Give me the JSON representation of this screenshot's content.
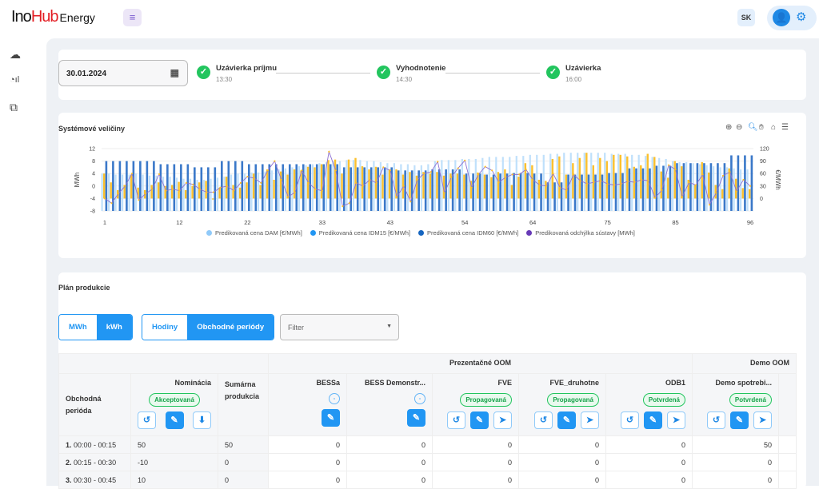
{
  "header": {
    "logo_left": "Ino",
    "logo_mid": "Hub",
    "logo_sub": "Energy",
    "user_initials": "SK"
  },
  "sidebar": {
    "items": [
      {
        "icon": "cloud-network-icon"
      },
      {
        "icon": "chart-analytics-icon"
      },
      {
        "icon": "copy-icon"
      }
    ]
  },
  "timeline": {
    "date": "30.01.2024",
    "steps": [
      {
        "label": "Uzávierka príjmu",
        "time": "13:30",
        "status": "done"
      },
      {
        "label": "Vyhodnotenie",
        "time": "14:30",
        "status": "done"
      },
      {
        "label": "Uzávierka",
        "time": "16:00",
        "status": "done"
      }
    ]
  },
  "chart_card": {
    "title": "Systémové veličiny"
  },
  "chart_data": {
    "type": "bar",
    "x_ticks": [
      "1",
      "12",
      "22",
      "33",
      "43",
      "54",
      "64",
      "75",
      "85",
      "96"
    ],
    "ylabel_left": "MWh",
    "ylabel_right": "€/MWh",
    "ylim_left": [
      -8,
      12
    ],
    "yticks_left": [
      "12",
      "8",
      "4",
      "0",
      "-4",
      "-8"
    ],
    "ylim_right": [
      0,
      120
    ],
    "yticks_right": [
      "120",
      "90",
      "60",
      "30",
      "0"
    ],
    "grid": true,
    "legend_position": "bottom",
    "colors": {
      "dam": "#bfe0fb",
      "idm15": "#fbc02d",
      "idm60": "#3a78c9",
      "deviation": "#8e6fd0"
    },
    "series": [
      {
        "name": "Predikovaná cena DAM [€/MWh]",
        "legend_color": "#90caf9",
        "axis": "right",
        "values": [
          72,
          72,
          70,
          70,
          70,
          72,
          70,
          68,
          68,
          66,
          66,
          64,
          62,
          62,
          60,
          60,
          62,
          64,
          66,
          70,
          72,
          72,
          74,
          74,
          76,
          78,
          80,
          82,
          84,
          86,
          88,
          90,
          92,
          94,
          96,
          96,
          98,
          98,
          98,
          96,
          96,
          94,
          92,
          92,
          90,
          90,
          88,
          88,
          90,
          96,
          98,
          98,
          98,
          100,
          100,
          100,
          102,
          104,
          104,
          104,
          104,
          106,
          106,
          108,
          108,
          108,
          110,
          110,
          112,
          112,
          112,
          112,
          112,
          112,
          112,
          110,
          110,
          110,
          108,
          108,
          106,
          104,
          102,
          100,
          96,
          94,
          94,
          92,
          90,
          88,
          86,
          84,
          84,
          82,
          80,
          80
        ]
      },
      {
        "name": "Predikovaná cena IDM15 [€/MWh]",
        "legend_color": "#2196f3",
        "axis": "right",
        "values": [
          72,
          55,
          40,
          50,
          70,
          45,
          40,
          50,
          55,
          48,
          50,
          56,
          40,
          48,
          55,
          58,
          22,
          45,
          66,
          50,
          45,
          55,
          72,
          50,
          80,
          60,
          76,
          70,
          80,
          78,
          85,
          84,
          90,
          98,
          99,
          72,
          99,
          102,
          86,
          80,
          85,
          70,
          80,
          80,
          70,
          75,
          68,
          75,
          72,
          75,
          68,
          72,
          72,
          70,
          58,
          74,
          70,
          65,
          75,
          80,
          50,
          66,
          92,
          88,
          60,
          58,
          100,
          105,
          70,
          92,
          102,
          112,
          88,
          102,
          96,
          108,
          108,
          105,
          85,
          88,
          110,
          104,
          76,
          64,
          96,
          86,
          60,
          50,
          94,
          74,
          50,
          42,
          82,
          62,
          44,
          42
        ]
      },
      {
        "name": "Predikovaná cena IDM60 [€/MWh]",
        "legend_color": "#1565c0",
        "axis": "right",
        "values": [
          96,
          96,
          96,
          96,
          96,
          96,
          96,
          96,
          90,
          90,
          90,
          90,
          90,
          84,
          84,
          84,
          84,
          96,
          96,
          96,
          96,
          90,
          90,
          90,
          90,
          90,
          90,
          90,
          90,
          90,
          90,
          90,
          90,
          90,
          90,
          84,
          84,
          84,
          84,
          84,
          84,
          84,
          84,
          78,
          78,
          78,
          78,
          78,
          80,
          80,
          80,
          80,
          80,
          72,
          72,
          72,
          70,
          70,
          72,
          72,
          73,
          73,
          73,
          72,
          72,
          55,
          55,
          55,
          70,
          70,
          70,
          70,
          70,
          70,
          73,
          73,
          73,
          82,
          82,
          82,
          82,
          87,
          87,
          87,
          92,
          92,
          92,
          92,
          92,
          92,
          92,
          92,
          107,
          107,
          107,
          107
        ]
      },
      {
        "name": "Predikovaná odchýlka sústavy [MWh]",
        "legend_color": "#673ab7",
        "axis": "left",
        "values": [
          -4,
          -5.5,
          -2.5,
          0,
          4,
          -4.5,
          -2.5,
          -1,
          3.8,
          -1.5,
          -1,
          -1.5,
          1,
          0.5,
          -1,
          -2,
          -2,
          -0.5,
          0,
          -1.5,
          1,
          3,
          2.5,
          1,
          5,
          8,
          2,
          -3.5,
          -2,
          5,
          1,
          -1,
          -1.5,
          11,
          5,
          -6.5,
          -5.5,
          1,
          0,
          2,
          1,
          6,
          5,
          -3.5,
          0,
          -5,
          2,
          4,
          4.5,
          7.8,
          -2.2,
          2.8,
          5.7,
          8.2,
          -0.5,
          3.7,
          6.2,
          5,
          1.2,
          2.8,
          3.7,
          3.7,
          5.3,
          2,
          0.3,
          0,
          4,
          -0.5,
          -1.3,
          3.7,
          1.7,
          0.7,
          1.2,
          1.7,
          0.7,
          0.3,
          0.7,
          1.5,
          1.2,
          2,
          1.7,
          -3.8,
          -1.3,
          6.7,
          5.3,
          -3.5,
          1.2,
          0.3,
          3.7,
          -6,
          -2.2,
          3.3,
          4.5,
          -1.7,
          2,
          0
        ]
      }
    ]
  },
  "plan": {
    "title": "Plán produkcie",
    "units": [
      "MWh",
      "kWh"
    ],
    "unit_selected": "kWh",
    "granularity": [
      "Hodiny",
      "Obchodné periódy"
    ],
    "granularity_selected": "Obchodné periódy",
    "filter_placeholder": "Filter",
    "groups": [
      "Prezentačné OOM",
      "Demo OOM"
    ],
    "col_period": "Obchodná perióda",
    "col_nomination": "Nominácia",
    "nomination_status": "Akceptovaná",
    "col_sum": "Sumárna produkcia",
    "devices": [
      {
        "name": "BESSa",
        "status": "-"
      },
      {
        "name": "BESS Demonstr...",
        "status": "-"
      },
      {
        "name": "FVE",
        "status": "Propagovaná"
      },
      {
        "name": "FVE_druhotne",
        "status": "Propagovaná"
      },
      {
        "name": "ODB1",
        "status": "Potvrdená"
      },
      {
        "name": "Demo spotrebi...",
        "status": "Potvrdená"
      }
    ],
    "rows": [
      {
        "num": "1.",
        "time": "00:00 - 00:15",
        "nomination": "50",
        "sum": "50",
        "values": [
          "0",
          "0",
          "0",
          "0",
          "0",
          "50"
        ]
      },
      {
        "num": "2.",
        "time": "00:15 - 00:30",
        "nomination": "-10",
        "sum": "0",
        "values": [
          "0",
          "0",
          "0",
          "0",
          "0",
          "0"
        ]
      },
      {
        "num": "3.",
        "time": "00:30 - 00:45",
        "nomination": "10",
        "sum": "0",
        "values": [
          "0",
          "0",
          "0",
          "0",
          "0",
          "0"
        ]
      }
    ]
  }
}
